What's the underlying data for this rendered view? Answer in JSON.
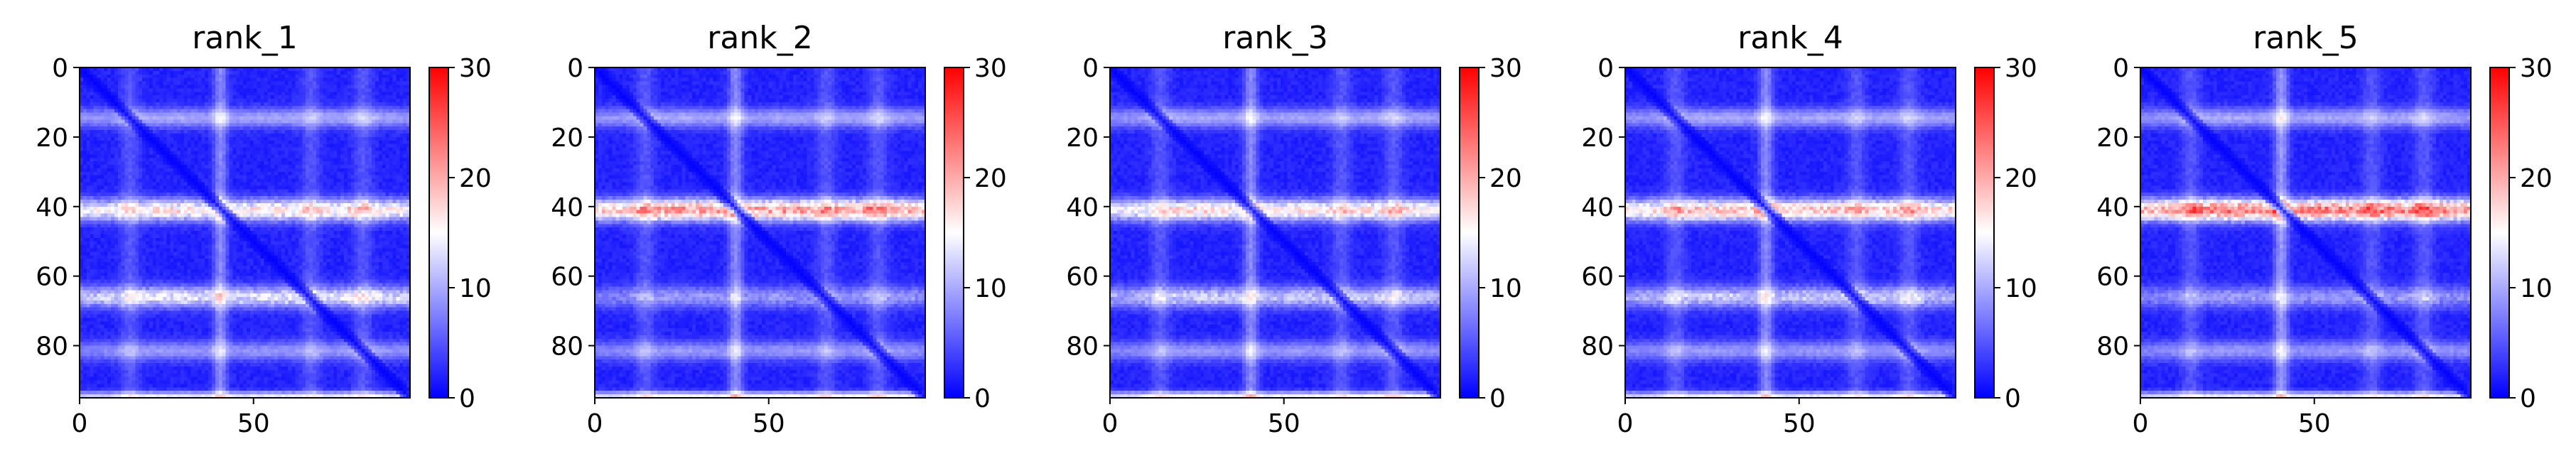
{
  "figure": {
    "colormap": [
      "#0000ff",
      "#ffffff",
      "#ff0000"
    ],
    "colormap_name": "bwr"
  },
  "chart_data": [
    {
      "type": "heatmap",
      "title": "rank_1",
      "size": 95,
      "vmin": 0,
      "vmax": 30,
      "xticks": [
        0,
        50
      ],
      "yticks": [
        0,
        20,
        40,
        60,
        80
      ],
      "colorbar_ticks": [
        0,
        10,
        20,
        30
      ],
      "features": {
        "band40": 15,
        "band66": 12,
        "band14": 8,
        "band81": 7,
        "band94": 12,
        "col40": 6,
        "diag": 0.5
      }
    },
    {
      "type": "heatmap",
      "title": "rank_2",
      "size": 95,
      "vmin": 0,
      "vmax": 30,
      "xticks": [
        0,
        50
      ],
      "yticks": [
        0,
        20,
        40,
        60,
        80
      ],
      "colorbar_ticks": [
        0,
        10,
        20,
        30
      ],
      "features": {
        "band40": 19,
        "band66": 7,
        "band14": 8,
        "band81": 7,
        "band94": 13,
        "col40": 6,
        "diag": 0.5
      }
    },
    {
      "type": "heatmap",
      "title": "rank_3",
      "size": 95,
      "vmin": 0,
      "vmax": 30,
      "xticks": [
        0,
        50
      ],
      "yticks": [
        0,
        20,
        40,
        60,
        80
      ],
      "colorbar_ticks": [
        0,
        10,
        20,
        30
      ],
      "features": {
        "band40": 15,
        "band66": 10,
        "band14": 8,
        "band81": 7,
        "band94": 13,
        "col40": 6,
        "diag": 0.5
      }
    },
    {
      "type": "heatmap",
      "title": "rank_4",
      "size": 95,
      "vmin": 0,
      "vmax": 30,
      "xticks": [
        0,
        50
      ],
      "yticks": [
        0,
        20,
        40,
        60,
        80
      ],
      "colorbar_ticks": [
        0,
        10,
        20,
        30
      ],
      "features": {
        "band40": 17,
        "band66": 10,
        "band14": 8,
        "band81": 7,
        "band94": 12,
        "col40": 6,
        "diag": 0.5
      }
    },
    {
      "type": "heatmap",
      "title": "rank_5",
      "size": 95,
      "vmin": 0,
      "vmax": 30,
      "xticks": [
        0,
        50
      ],
      "yticks": [
        0,
        20,
        40,
        60,
        80
      ],
      "colorbar_ticks": [
        0,
        10,
        20,
        30
      ],
      "features": {
        "band40": 21,
        "band66": 7,
        "band14": 8,
        "band81": 7,
        "band94": 12,
        "col40": 7,
        "diag": 0.5
      }
    }
  ]
}
